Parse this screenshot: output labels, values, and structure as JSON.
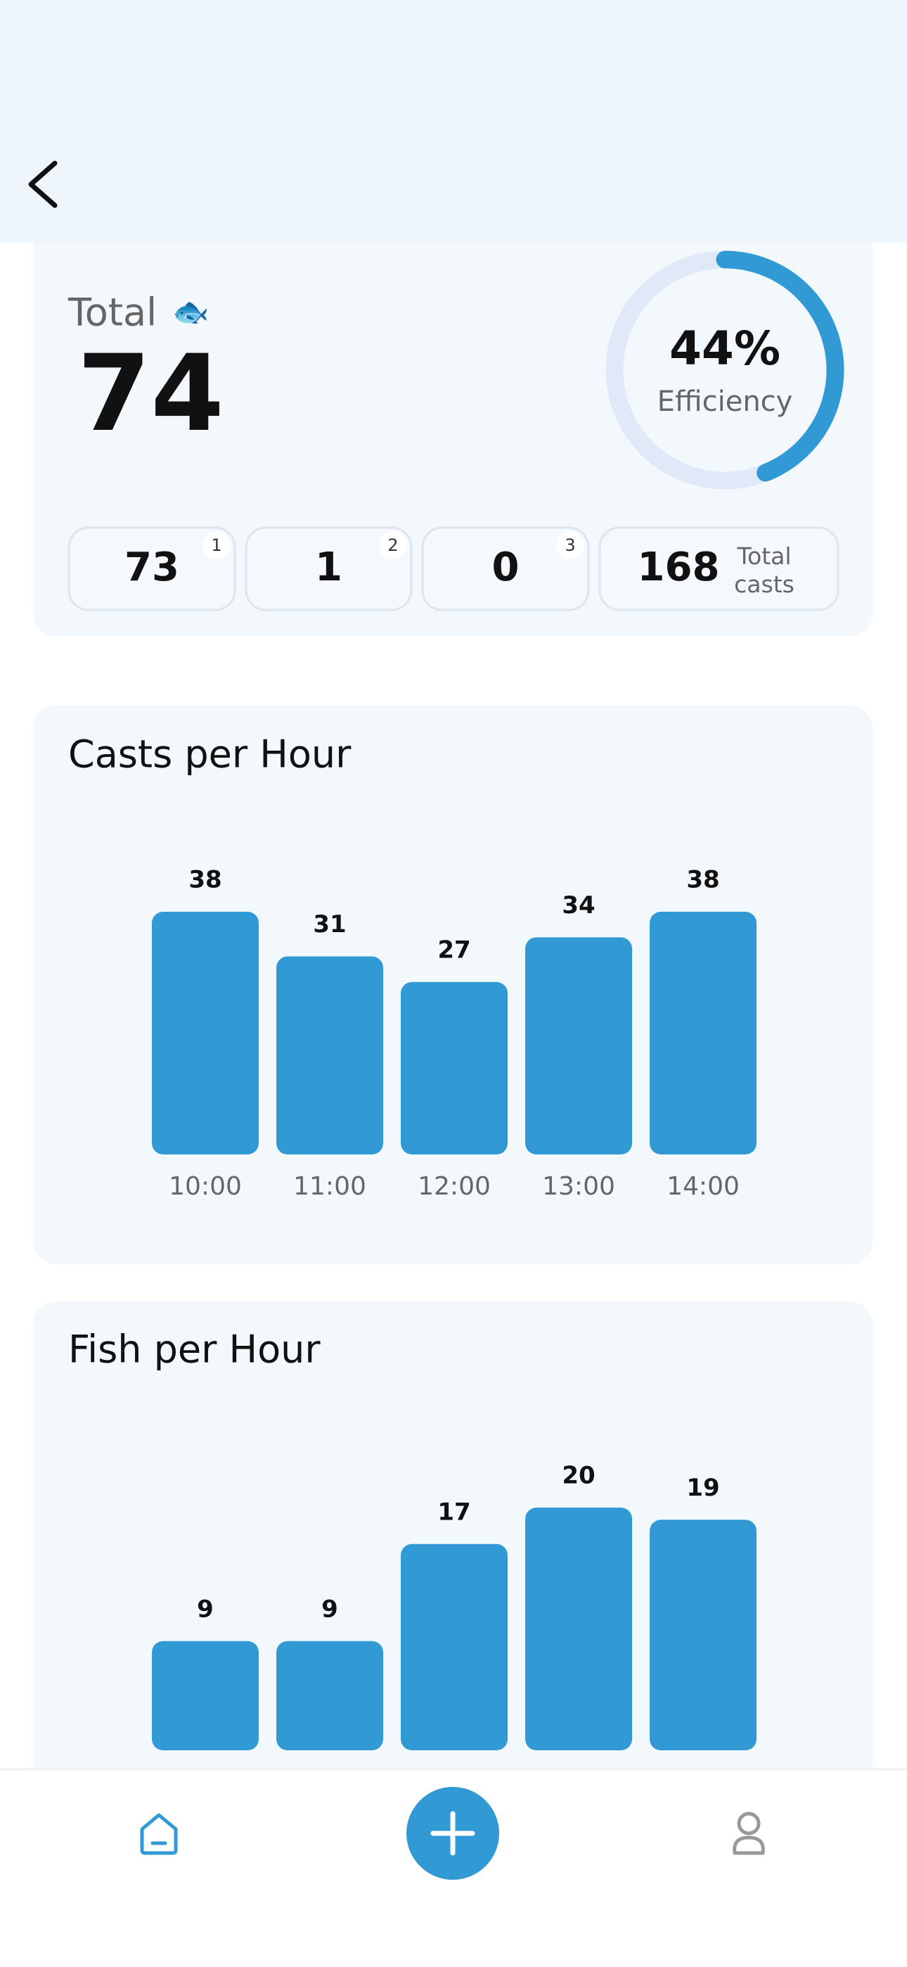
{
  "summary": {
    "label": "Total",
    "icon": "🐟",
    "total": 74,
    "efficiency": {
      "value": 44,
      "value_label": "44%",
      "label": "Efficiency"
    },
    "counts": [
      {
        "value": 73,
        "rank": "1"
      },
      {
        "value": 1,
        "rank": "2"
      },
      {
        "value": 0,
        "rank": "3"
      }
    ],
    "casts": {
      "value": 168,
      "label": "Total casts"
    }
  },
  "casts_per_hour": {
    "type": "bar",
    "title": "Casts per Hour",
    "categories": [
      "10:00",
      "11:00",
      "12:00",
      "13:00",
      "14:00"
    ],
    "values": [
      38,
      31,
      27,
      34,
      38
    ],
    "color": "#3199d4"
  },
  "fish_per_hour": {
    "type": "bar",
    "title": "Fish per Hour",
    "values": [
      9,
      9,
      17,
      20,
      19
    ],
    "color": "#3199d4"
  }
}
